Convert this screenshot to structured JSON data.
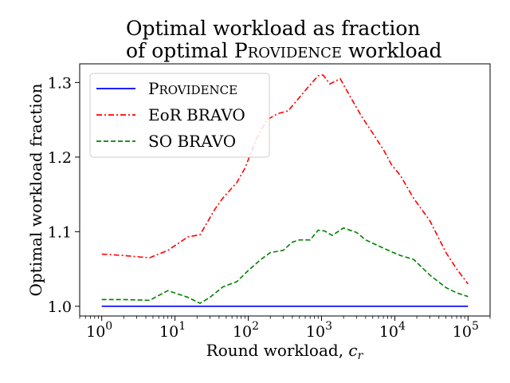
{
  "chart_data": {
    "type": "line",
    "title_lines": [
      "Optimal workload as fraction",
      "of optimal PROVIDENCE workload"
    ],
    "xlabel": "Round workload, c_r",
    "ylabel": "Optimal workload fraction",
    "xscale": "log",
    "xlim": [
      0.5,
      200000
    ],
    "ylim": [
      0.987,
      1.325
    ],
    "x_ticks": [
      {
        "value": 1,
        "base": "10",
        "exp": "0"
      },
      {
        "value": 10,
        "base": "10",
        "exp": "1"
      },
      {
        "value": 100,
        "base": "10",
        "exp": "2"
      },
      {
        "value": 1000,
        "base": "10",
        "exp": "3"
      },
      {
        "value": 10000,
        "base": "10",
        "exp": "4"
      },
      {
        "value": 100000,
        "base": "10",
        "exp": "5"
      }
    ],
    "y_ticks": [
      {
        "value": 1.0,
        "label": "1.0"
      },
      {
        "value": 1.1,
        "label": "1.1"
      },
      {
        "value": 1.2,
        "label": "1.2"
      },
      {
        "value": 1.3,
        "label": "1.3"
      }
    ],
    "grid": false,
    "legend_position": "top-left",
    "series": [
      {
        "name": "PROVIDENCE",
        "color": "#0000ff",
        "dash": "solid",
        "x": [
          1,
          100000
        ],
        "y": [
          1.0,
          1.0
        ]
      },
      {
        "name": "EoR BRAVO",
        "color": "#ff0000",
        "dash": "dashdot",
        "x": [
          1,
          2,
          4.5,
          8,
          15,
          22,
          35,
          45,
          70,
          90,
          130,
          180,
          250,
          350,
          500,
          700,
          900,
          1050,
          1300,
          1800,
          2500,
          3500,
          5000,
          7000,
          9000,
          12000,
          18000,
          30000,
          50000,
          70000,
          100000
        ],
        "y": [
          1.07,
          1.068,
          1.065,
          1.075,
          1.093,
          1.096,
          1.13,
          1.145,
          1.166,
          1.185,
          1.225,
          1.25,
          1.258,
          1.262,
          1.28,
          1.297,
          1.309,
          1.31,
          1.298,
          1.305,
          1.28,
          1.255,
          1.232,
          1.21,
          1.19,
          1.175,
          1.145,
          1.115,
          1.072,
          1.05,
          1.03
        ]
      },
      {
        "name": "SO BRAVO",
        "color": "#008000",
        "dash": "dashed",
        "x": [
          1,
          2,
          4.5,
          8,
          15,
          22,
          30,
          45,
          70,
          100,
          150,
          200,
          300,
          400,
          500,
          700,
          900,
          1100,
          1400,
          2000,
          3000,
          4000,
          6000,
          9000,
          12000,
          18000,
          30000,
          50000,
          70000,
          100000
        ],
        "y": [
          1.009,
          1.009,
          1.008,
          1.021,
          1.012,
          1.004,
          1.012,
          1.026,
          1.033,
          1.048,
          1.063,
          1.072,
          1.075,
          1.086,
          1.089,
          1.089,
          1.102,
          1.101,
          1.095,
          1.105,
          1.099,
          1.089,
          1.081,
          1.073,
          1.068,
          1.063,
          1.042,
          1.025,
          1.018,
          1.013
        ]
      }
    ]
  }
}
